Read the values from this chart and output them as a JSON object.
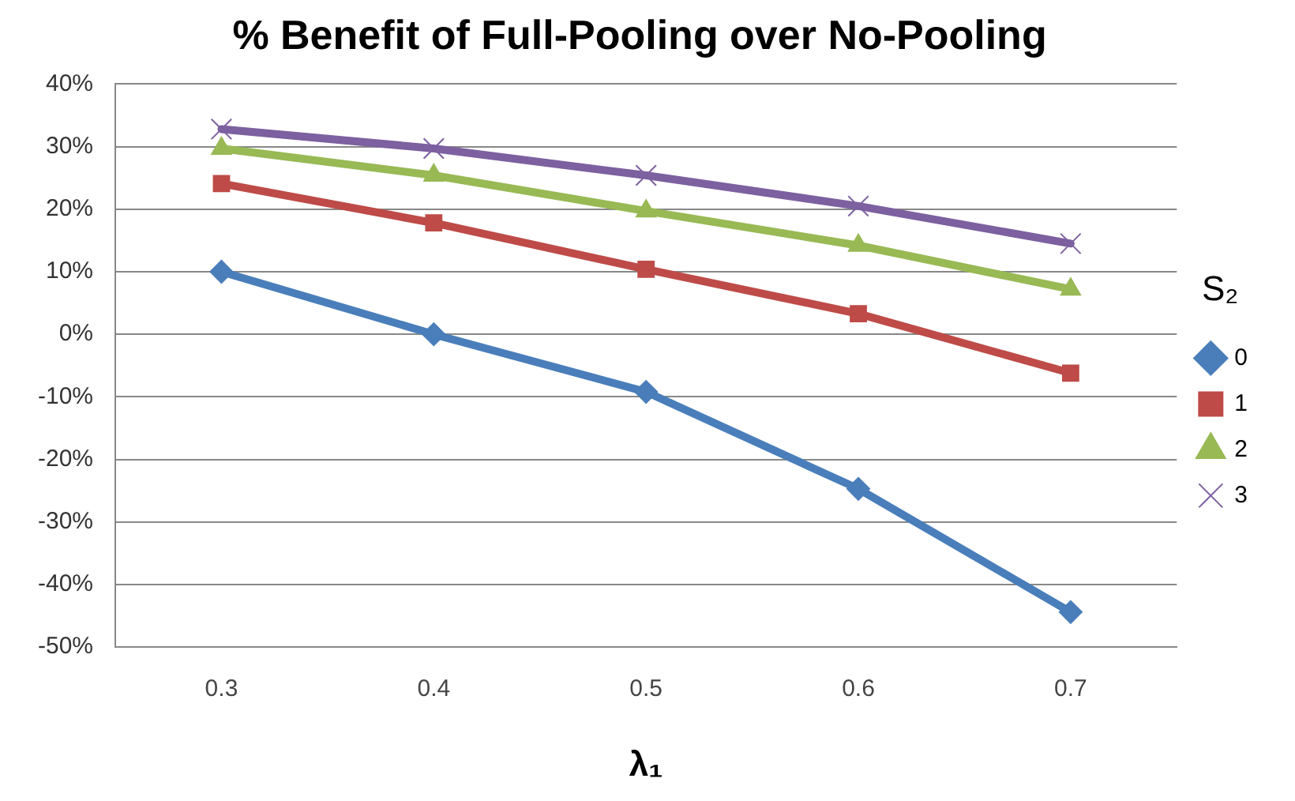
{
  "chart_data": {
    "type": "line",
    "title": "% Benefit of Full-Pooling over No-Pooling",
    "xlabel": "λ₁",
    "legend_title": "S₂",
    "categories": [
      "0.3",
      "0.4",
      "0.5",
      "0.6",
      "0.7"
    ],
    "series": [
      {
        "name": "0",
        "color": "#4a7ebb",
        "marker": "diamond",
        "values": [
          10,
          0,
          -9.2,
          -24.7,
          -44.4
        ]
      },
      {
        "name": "1",
        "color": "#be4b48",
        "marker": "square",
        "values": [
          24.1,
          17.8,
          10.4,
          3.3,
          -6.2
        ]
      },
      {
        "name": "2",
        "color": "#98b954",
        "marker": "triangle",
        "values": [
          29.7,
          25.4,
          19.7,
          14.2,
          7.2
        ]
      },
      {
        "name": "3",
        "color": "#7d60a0",
        "marker": "cross",
        "values": [
          32.8,
          29.7,
          25.4,
          20.5,
          14.5
        ]
      }
    ],
    "ylim": [
      -50,
      40
    ],
    "yticks": [
      {
        "value": 40,
        "label": "40%"
      },
      {
        "value": 30,
        "label": "30%"
      },
      {
        "value": 20,
        "label": "20%"
      },
      {
        "value": 10,
        "label": "10%"
      },
      {
        "value": 0,
        "label": "0%"
      },
      {
        "value": -10,
        "label": "-10%"
      },
      {
        "value": -20,
        "label": "-20%"
      },
      {
        "value": -30,
        "label": "-30%"
      },
      {
        "value": -40,
        "label": "-40%"
      },
      {
        "value": -50,
        "label": "-50%"
      }
    ],
    "grid": "y",
    "legend": "right",
    "line_style": "solid"
  }
}
